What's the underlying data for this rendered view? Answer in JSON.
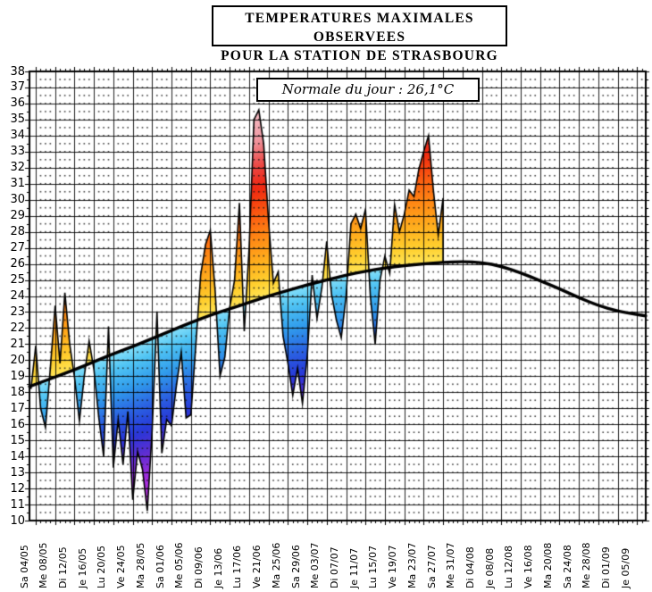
{
  "header": {
    "title_line1": "TEMPERATURES MAXIMALES OBSERVEES",
    "title_line2": "POUR LA STATION DE STRASBOURG"
  },
  "annotation_box": {
    "text": "Normale du jour : 26,1°C"
  },
  "chart_data": {
    "type": "area",
    "title": "TEMPERATURES MAXIMALES OBSERVEES POUR LA STATION DE STRASBOURG",
    "annotation": "Normale du jour : 26,1°C",
    "normale_du_jour_value": "26,1°C",
    "ylim": [
      10,
      38
    ],
    "y_ticks": [
      38,
      37,
      36,
      35,
      34,
      33,
      32,
      31,
      30,
      29,
      28,
      27,
      26,
      25,
      24,
      23,
      22,
      21,
      20,
      19,
      18,
      17,
      16,
      15,
      14,
      13,
      12,
      11,
      10
    ],
    "x_ticks": [
      "Sa 04/05",
      "Me 08/05",
      "Di 12/05",
      "Je 16/05",
      "Lu 20/05",
      "Ve 24/05",
      "Ma 28/05",
      "Sa 01/06",
      "Me 05/06",
      "Di 09/06",
      "Je 13/06",
      "Lu 17/06",
      "Ve 21/06",
      "Ma 25/06",
      "Sa 29/06",
      "Me 03/07",
      "Di 07/07",
      "Je 11/07",
      "Lu 15/07",
      "Ve 19/07",
      "Ma 23/07",
      "Sa 27/07",
      "Me 31/07",
      "Di 04/08",
      "Je 08/08",
      "Lu 12/08",
      "Ve 16/08",
      "Ma 20/08",
      "Sa 24/08",
      "Me 28/08",
      "Di 01/09",
      "Je 05/09"
    ],
    "tick_interval_days": 4,
    "grid": "solid lines every 1°C and every 4 days, dotted lattice each day / half degree",
    "legend_position": "none",
    "observed": {
      "dates": [
        "03/05",
        "04/05",
        "05/05",
        "06/05",
        "07/05",
        "08/05",
        "09/05",
        "10/05",
        "11/05",
        "12/05",
        "13/05",
        "14/05",
        "15/05",
        "16/05",
        "17/05",
        "18/05",
        "19/05",
        "20/05",
        "21/05",
        "22/05",
        "23/05",
        "24/05",
        "25/05",
        "26/05",
        "27/05",
        "28/05",
        "29/05",
        "30/05",
        "31/05",
        "01/06",
        "02/06",
        "03/06",
        "04/06",
        "05/06",
        "06/06",
        "07/06",
        "08/06",
        "09/06",
        "10/06",
        "11/06",
        "12/06",
        "13/06",
        "14/06",
        "15/06",
        "16/06",
        "17/06",
        "18/06",
        "19/06",
        "20/06",
        "21/06",
        "22/06",
        "23/06",
        "24/06",
        "25/06",
        "26/06",
        "27/06",
        "28/06",
        "29/06",
        "30/06",
        "01/07",
        "02/07",
        "03/07",
        "04/07",
        "05/07",
        "06/07",
        "07/07",
        "08/07",
        "09/07",
        "10/07",
        "11/07",
        "12/07",
        "13/07",
        "14/07",
        "15/07",
        "16/07",
        "17/07",
        "18/07",
        "19/07",
        "20/07",
        "21/07",
        "22/07",
        "23/07",
        "24/07",
        "25/07",
        "26/07",
        "27/07"
      ],
      "values": [
        18.2,
        20.9,
        17.0,
        15.8,
        19.5,
        23.4,
        19.8,
        24.2,
        21.0,
        18.9,
        16.2,
        19.0,
        21.2,
        19.4,
        16.4,
        14.0,
        22.1,
        13.3,
        16.3,
        13.5,
        16.8,
        11.3,
        14.3,
        13.2,
        10.6,
        15.6,
        23.0,
        14.2,
        16.3,
        15.9,
        18.4,
        20.5,
        16.4,
        16.6,
        20.9,
        25.3,
        27.2,
        28.1,
        24.3,
        19.0,
        20.2,
        23.3,
        25.0,
        29.8,
        21.8,
        27.0,
        35.0,
        35.6,
        33.5,
        28.7,
        24.8,
        25.5,
        21.5,
        19.8,
        17.8,
        19.5,
        17.3,
        20.3,
        25.3,
        22.6,
        24.5,
        27.4,
        24.1,
        22.5,
        21.4,
        24.0,
        28.5,
        29.1,
        28.2,
        29.4,
        24.0,
        21.0,
        25.0,
        26.5,
        25.4,
        29.7,
        28.0,
        29.1,
        30.6,
        30.2,
        31.9,
        33.0,
        34.0,
        30.6,
        27.8,
        30.1
      ]
    },
    "normale": {
      "dates": [
        "04/05",
        "08/05",
        "12/05",
        "16/05",
        "20/05",
        "24/05",
        "28/05",
        "01/06",
        "05/06",
        "09/06",
        "13/06",
        "17/06",
        "21/06",
        "25/06",
        "29/06",
        "03/07",
        "07/07",
        "11/07",
        "15/07",
        "19/07",
        "23/07",
        "27/07",
        "31/07",
        "04/08",
        "08/08",
        "12/08",
        "16/08",
        "20/08",
        "24/08",
        "28/08",
        "01/09",
        "05/09"
      ],
      "values": [
        18.5,
        18.95,
        19.4,
        19.9,
        20.4,
        20.85,
        21.35,
        21.85,
        22.35,
        22.8,
        23.2,
        23.6,
        24.0,
        24.35,
        24.7,
        25.0,
        25.3,
        25.55,
        25.75,
        25.9,
        26.0,
        26.1,
        26.15,
        26.1,
        25.85,
        25.45,
        24.95,
        24.45,
        23.9,
        23.4,
        23.05,
        22.85
      ]
    },
    "colors": {
      "line": "#000000",
      "above_stops": [
        [
          0,
          "#FFE558"
        ],
        [
          1,
          "#FFD02E"
        ],
        [
          2.5,
          "#FFAA1C"
        ],
        [
          4,
          "#FF8414"
        ],
        [
          5.5,
          "#FB5510"
        ],
        [
          7,
          "#EF2611"
        ],
        [
          8.5,
          "#EB4C4A"
        ],
        [
          10,
          "#F09AA4"
        ],
        [
          12,
          "#F6C2CA"
        ]
      ],
      "below_stops": [
        [
          0,
          "#86E0FA"
        ],
        [
          1,
          "#4FC4F4"
        ],
        [
          2.5,
          "#309BEC"
        ],
        [
          4,
          "#2B62E2"
        ],
        [
          5.5,
          "#2737D8"
        ],
        [
          7,
          "#5F2ED2"
        ],
        [
          8.5,
          "#A12CDE"
        ],
        [
          10.5,
          "#CE3BEC"
        ]
      ]
    }
  }
}
